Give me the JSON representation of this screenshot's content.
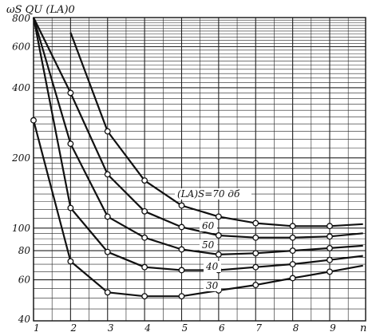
{
  "chart_data": {
    "type": "line",
    "title": "",
    "ylabel": "ωS QU (LA)0",
    "xlabel": "n",
    "x_ticks": [
      "1",
      "2",
      "3",
      "4",
      "5",
      "6",
      "7",
      "8",
      "9"
    ],
    "y_scale": "log",
    "ylim": [
      40,
      800
    ],
    "xlim": [
      1,
      9.9
    ],
    "y_tick_labels": [
      {
        "value": 40,
        "label": "40"
      },
      {
        "value": 60,
        "label": "60"
      },
      {
        "value": 80,
        "label": "80"
      },
      {
        "value": 100,
        "label": "100"
      },
      {
        "value": 200,
        "label": "200"
      },
      {
        "value": 400,
        "label": "400"
      },
      {
        "value": 600,
        "label": "600"
      },
      {
        "value": 800,
        "label": "800"
      }
    ],
    "grid": true,
    "series": [
      {
        "name": "(LA)S=70 дб",
        "x": [
          2,
          3,
          4,
          5,
          6,
          7,
          8,
          9,
          9.9
        ],
        "y": [
          690,
          260,
          160,
          125,
          112,
          105,
          102,
          102,
          104
        ],
        "markers": [
          false,
          true,
          true,
          true,
          true,
          true,
          true,
          true,
          false
        ]
      },
      {
        "name": "60",
        "x": [
          1,
          2,
          3,
          4,
          5,
          6,
          7,
          8,
          9,
          9.9
        ],
        "y": [
          800,
          380,
          170,
          118,
          101,
          93,
          91,
          91,
          92,
          95
        ],
        "markers": [
          false,
          true,
          true,
          true,
          true,
          true,
          true,
          true,
          true,
          false
        ]
      },
      {
        "name": "50",
        "x": [
          1,
          2,
          3,
          4,
          5,
          6,
          7,
          8,
          9,
          9.9
        ],
        "y": [
          800,
          230,
          112,
          91,
          81,
          77,
          78,
          80,
          82,
          84
        ],
        "markers": [
          false,
          true,
          true,
          true,
          true,
          true,
          true,
          true,
          true,
          false
        ]
      },
      {
        "name": "40",
        "x": [
          1,
          2,
          3,
          4,
          5,
          6,
          7,
          8,
          9,
          9.9
        ],
        "y": [
          800,
          122,
          79,
          68,
          66,
          66,
          68,
          70,
          73,
          76
        ],
        "markers": [
          false,
          true,
          true,
          true,
          true,
          true,
          true,
          true,
          true,
          false
        ]
      },
      {
        "name": "30",
        "x": [
          1,
          2,
          3,
          4,
          5,
          6,
          7,
          8,
          9,
          9.9
        ],
        "y": [
          290,
          72,
          53,
          51,
          51,
          54,
          57,
          61,
          65,
          69
        ],
        "markers": [
          true,
          true,
          true,
          true,
          true,
          true,
          true,
          true,
          true,
          false
        ]
      }
    ]
  }
}
